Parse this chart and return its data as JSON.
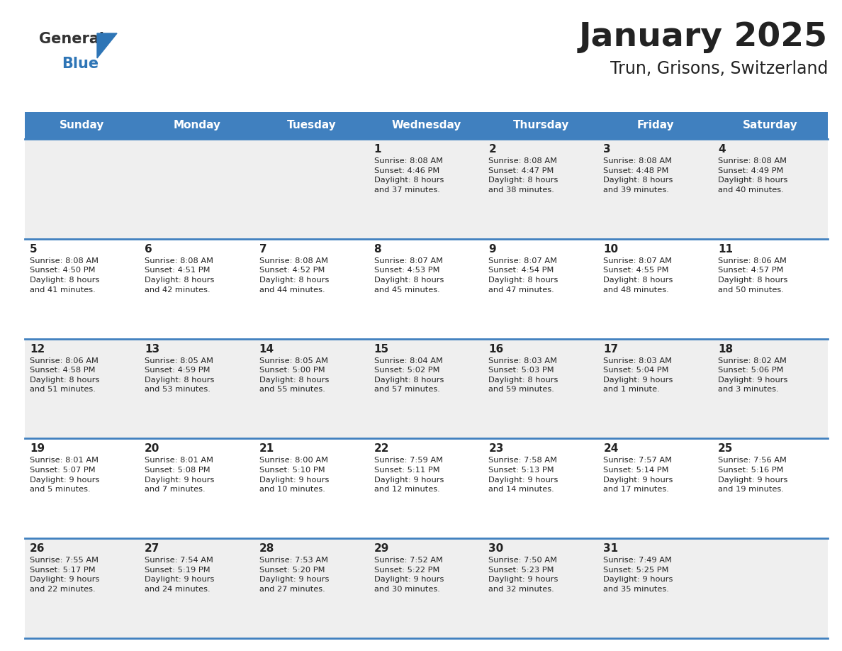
{
  "title": "January 2025",
  "subtitle": "Trun, Grisons, Switzerland",
  "header_color": "#4080BF",
  "header_text_color": "#FFFFFF",
  "bg_color": "#FFFFFF",
  "row_colors": [
    "#EFEFEF",
    "#FFFFFF"
  ],
  "text_color": "#222222",
  "line_color": "#4080BF",
  "days_of_week": [
    "Sunday",
    "Monday",
    "Tuesday",
    "Wednesday",
    "Thursday",
    "Friday",
    "Saturday"
  ],
  "calendar_data": [
    [
      {
        "day": "",
        "info": ""
      },
      {
        "day": "",
        "info": ""
      },
      {
        "day": "",
        "info": ""
      },
      {
        "day": "1",
        "info": "Sunrise: 8:08 AM\nSunset: 4:46 PM\nDaylight: 8 hours\nand 37 minutes."
      },
      {
        "day": "2",
        "info": "Sunrise: 8:08 AM\nSunset: 4:47 PM\nDaylight: 8 hours\nand 38 minutes."
      },
      {
        "day": "3",
        "info": "Sunrise: 8:08 AM\nSunset: 4:48 PM\nDaylight: 8 hours\nand 39 minutes."
      },
      {
        "day": "4",
        "info": "Sunrise: 8:08 AM\nSunset: 4:49 PM\nDaylight: 8 hours\nand 40 minutes."
      }
    ],
    [
      {
        "day": "5",
        "info": "Sunrise: 8:08 AM\nSunset: 4:50 PM\nDaylight: 8 hours\nand 41 minutes."
      },
      {
        "day": "6",
        "info": "Sunrise: 8:08 AM\nSunset: 4:51 PM\nDaylight: 8 hours\nand 42 minutes."
      },
      {
        "day": "7",
        "info": "Sunrise: 8:08 AM\nSunset: 4:52 PM\nDaylight: 8 hours\nand 44 minutes."
      },
      {
        "day": "8",
        "info": "Sunrise: 8:07 AM\nSunset: 4:53 PM\nDaylight: 8 hours\nand 45 minutes."
      },
      {
        "day": "9",
        "info": "Sunrise: 8:07 AM\nSunset: 4:54 PM\nDaylight: 8 hours\nand 47 minutes."
      },
      {
        "day": "10",
        "info": "Sunrise: 8:07 AM\nSunset: 4:55 PM\nDaylight: 8 hours\nand 48 minutes."
      },
      {
        "day": "11",
        "info": "Sunrise: 8:06 AM\nSunset: 4:57 PM\nDaylight: 8 hours\nand 50 minutes."
      }
    ],
    [
      {
        "day": "12",
        "info": "Sunrise: 8:06 AM\nSunset: 4:58 PM\nDaylight: 8 hours\nand 51 minutes."
      },
      {
        "day": "13",
        "info": "Sunrise: 8:05 AM\nSunset: 4:59 PM\nDaylight: 8 hours\nand 53 minutes."
      },
      {
        "day": "14",
        "info": "Sunrise: 8:05 AM\nSunset: 5:00 PM\nDaylight: 8 hours\nand 55 minutes."
      },
      {
        "day": "15",
        "info": "Sunrise: 8:04 AM\nSunset: 5:02 PM\nDaylight: 8 hours\nand 57 minutes."
      },
      {
        "day": "16",
        "info": "Sunrise: 8:03 AM\nSunset: 5:03 PM\nDaylight: 8 hours\nand 59 minutes."
      },
      {
        "day": "17",
        "info": "Sunrise: 8:03 AM\nSunset: 5:04 PM\nDaylight: 9 hours\nand 1 minute."
      },
      {
        "day": "18",
        "info": "Sunrise: 8:02 AM\nSunset: 5:06 PM\nDaylight: 9 hours\nand 3 minutes."
      }
    ],
    [
      {
        "day": "19",
        "info": "Sunrise: 8:01 AM\nSunset: 5:07 PM\nDaylight: 9 hours\nand 5 minutes."
      },
      {
        "day": "20",
        "info": "Sunrise: 8:01 AM\nSunset: 5:08 PM\nDaylight: 9 hours\nand 7 minutes."
      },
      {
        "day": "21",
        "info": "Sunrise: 8:00 AM\nSunset: 5:10 PM\nDaylight: 9 hours\nand 10 minutes."
      },
      {
        "day": "22",
        "info": "Sunrise: 7:59 AM\nSunset: 5:11 PM\nDaylight: 9 hours\nand 12 minutes."
      },
      {
        "day": "23",
        "info": "Sunrise: 7:58 AM\nSunset: 5:13 PM\nDaylight: 9 hours\nand 14 minutes."
      },
      {
        "day": "24",
        "info": "Sunrise: 7:57 AM\nSunset: 5:14 PM\nDaylight: 9 hours\nand 17 minutes."
      },
      {
        "day": "25",
        "info": "Sunrise: 7:56 AM\nSunset: 5:16 PM\nDaylight: 9 hours\nand 19 minutes."
      }
    ],
    [
      {
        "day": "26",
        "info": "Sunrise: 7:55 AM\nSunset: 5:17 PM\nDaylight: 9 hours\nand 22 minutes."
      },
      {
        "day": "27",
        "info": "Sunrise: 7:54 AM\nSunset: 5:19 PM\nDaylight: 9 hours\nand 24 minutes."
      },
      {
        "day": "28",
        "info": "Sunrise: 7:53 AM\nSunset: 5:20 PM\nDaylight: 9 hours\nand 27 minutes."
      },
      {
        "day": "29",
        "info": "Sunrise: 7:52 AM\nSunset: 5:22 PM\nDaylight: 9 hours\nand 30 minutes."
      },
      {
        "day": "30",
        "info": "Sunrise: 7:50 AM\nSunset: 5:23 PM\nDaylight: 9 hours\nand 32 minutes."
      },
      {
        "day": "31",
        "info": "Sunrise: 7:49 AM\nSunset: 5:25 PM\nDaylight: 9 hours\nand 35 minutes."
      },
      {
        "day": "",
        "info": ""
      }
    ]
  ]
}
